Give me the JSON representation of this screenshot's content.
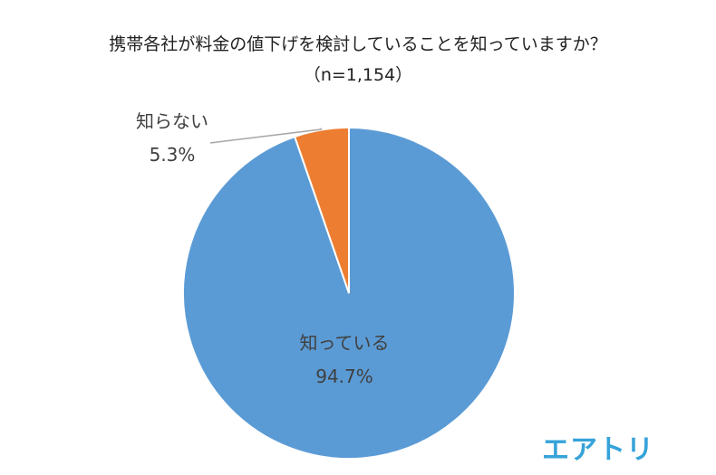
{
  "chart_data": {
    "type": "pie",
    "title": "携帯各社が料金の値下げを検討していることを知っていますか？",
    "subtitle": "（n=1,154）",
    "slices": [
      {
        "label": "知っている",
        "value": 94.7,
        "value_label": "94.7%",
        "color": "#5b9bd5"
      },
      {
        "label": "知らない",
        "value": 5.3,
        "value_label": "5.3%",
        "color": "#ed7d31"
      }
    ],
    "start_angle_deg": 0,
    "direction": "counterclockwise"
  },
  "brand": {
    "logo_text": "エアトリ",
    "color": "#36a3d9"
  }
}
